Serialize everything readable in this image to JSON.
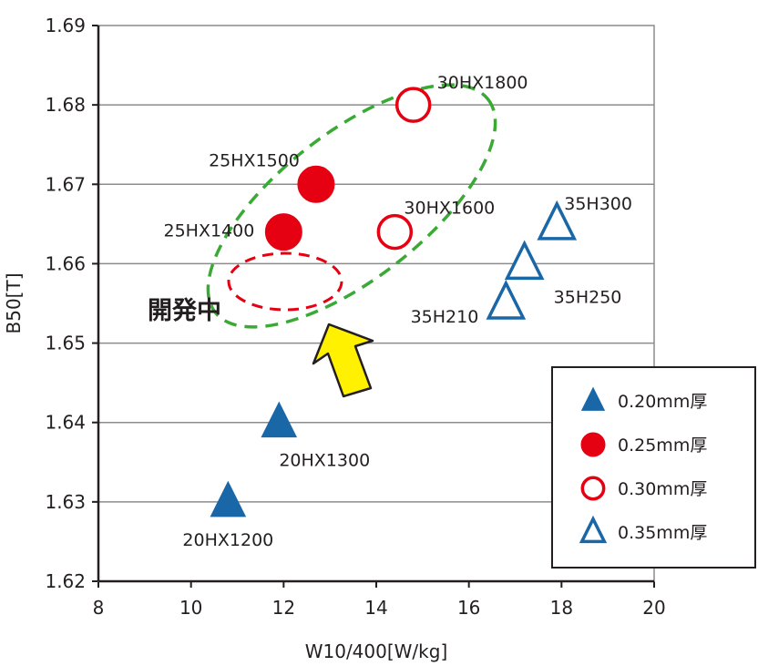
{
  "chart_data": {
    "type": "scatter",
    "xlabel": "W10/400[W/kg]",
    "ylabel": "B50[T]",
    "xlim": [
      8,
      20
    ],
    "ylim": [
      1.62,
      1.69
    ],
    "x_ticks": [
      "8",
      "10",
      "12",
      "14",
      "16",
      "18",
      "20"
    ],
    "y_ticks": [
      "1.62",
      "1.63",
      "1.64",
      "1.65",
      "1.66",
      "1.67",
      "1.68",
      "1.69"
    ],
    "grid": "horizontal",
    "legend_position": "bottom-right",
    "series": [
      {
        "name": "0.20mm厚",
        "marker": "filled-triangle",
        "color": "#1a67a8",
        "points": [
          {
            "label": "20HX1200",
            "x": 10.8,
            "y": 1.63
          },
          {
            "label": "20HX1300",
            "x": 11.9,
            "y": 1.64
          }
        ]
      },
      {
        "name": "0.25mm厚",
        "marker": "filled-circle",
        "color": "#e50012",
        "points": [
          {
            "label": "25HX1400",
            "x": 12.0,
            "y": 1.664
          },
          {
            "label": "25HX1500",
            "x": 12.7,
            "y": 1.67
          }
        ]
      },
      {
        "name": "0.30mm厚",
        "marker": "open-circle",
        "color": "#e50012",
        "points": [
          {
            "label": "30HX1600",
            "x": 14.4,
            "y": 1.664
          },
          {
            "label": "30HX1800",
            "x": 14.8,
            "y": 1.68
          }
        ]
      },
      {
        "name": "0.35mm厚",
        "marker": "open-triangle",
        "color": "#1a67a8",
        "points": [
          {
            "label": "35H210",
            "x": 16.8,
            "y": 1.655
          },
          {
            "label": "35H250",
            "x": 17.2,
            "y": 1.66
          },
          {
            "label": "35H300",
            "x": 17.9,
            "y": 1.665
          }
        ]
      }
    ],
    "annotations": {
      "development_label": "開発中",
      "colors": {
        "green_ellipse": "#3aaa35",
        "red_ellipse": "#e50012",
        "arrow_fill": "#fff100",
        "arrow_stroke": "#231f20"
      }
    }
  }
}
